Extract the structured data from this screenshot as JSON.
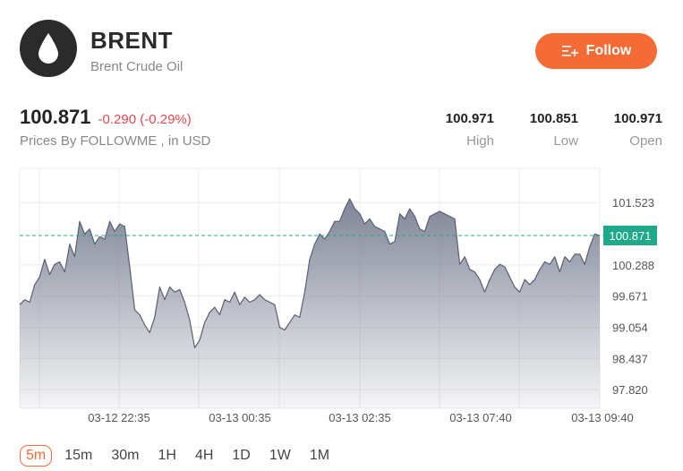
{
  "header": {
    "title": "BRENT",
    "subtitle": "Brent Crude Oil",
    "follow_label": "Follow"
  },
  "quote": {
    "price": "100.871",
    "change": "-0.290 (-0.29%)",
    "source": "Prices By FOLLOWME , in USD",
    "stats": [
      {
        "value": "100.971",
        "label": "High"
      },
      {
        "value": "100.851",
        "label": "Low"
      },
      {
        "value": "100.971",
        "label": "Open"
      }
    ]
  },
  "colors": {
    "accent": "#f46b35",
    "down": "#e5484d",
    "current_line": "#1fa88a",
    "area_top": "#7f8597",
    "line": "#5a6072"
  },
  "chart_data": {
    "type": "area",
    "y_ticks": [
      "101.523",
      "100.288",
      "99.671",
      "99.054",
      "98.437",
      "97.820"
    ],
    "x_ticks": [
      "03-12 22:35",
      "03-13 00:35",
      "03-13 02:35",
      "03-13 07:40",
      "03-13 09:40"
    ],
    "current_value_label": "100.871",
    "current_value": 100.871,
    "ylim": [
      97.45,
      102.2
    ],
    "grid": true,
    "values": [
      99.5,
      99.6,
      99.55,
      99.9,
      100.05,
      100.4,
      100.1,
      100.3,
      100.35,
      100.15,
      100.7,
      100.45,
      101.15,
      100.9,
      101.0,
      100.7,
      100.85,
      100.8,
      101.15,
      100.95,
      101.1,
      101.05,
      100.25,
      99.4,
      99.3,
      99.1,
      98.95,
      99.25,
      99.85,
      99.6,
      99.85,
      99.75,
      99.8,
      99.55,
      99.2,
      98.65,
      98.8,
      99.15,
      99.35,
      99.45,
      99.3,
      99.6,
      99.55,
      99.75,
      99.5,
      99.65,
      99.55,
      99.6,
      99.7,
      99.6,
      99.55,
      99.5,
      99.05,
      99.0,
      99.15,
      99.3,
      99.25,
      99.75,
      100.4,
      100.7,
      100.9,
      100.8,
      100.95,
      101.15,
      101.15,
      101.4,
      101.6,
      101.4,
      101.3,
      101.1,
      101.2,
      101.05,
      101.0,
      100.95,
      100.7,
      100.75,
      101.3,
      101.2,
      101.4,
      101.25,
      101.0,
      100.95,
      101.25,
      101.3,
      101.35,
      101.3,
      101.25,
      101.2,
      100.3,
      100.45,
      100.2,
      100.15,
      100.0,
      99.75,
      100.0,
      100.2,
      100.3,
      100.25,
      100.05,
      99.85,
      99.75,
      100.0,
      99.9,
      100.0,
      100.2,
      100.35,
      100.3,
      100.45,
      100.15,
      100.45,
      100.35,
      100.5,
      100.5,
      100.3,
      100.65,
      100.9,
      100.87
    ]
  },
  "timeframes": {
    "items": [
      "5m",
      "15m",
      "30m",
      "1H",
      "4H",
      "1D",
      "1W",
      "1M"
    ],
    "active": "5m"
  }
}
